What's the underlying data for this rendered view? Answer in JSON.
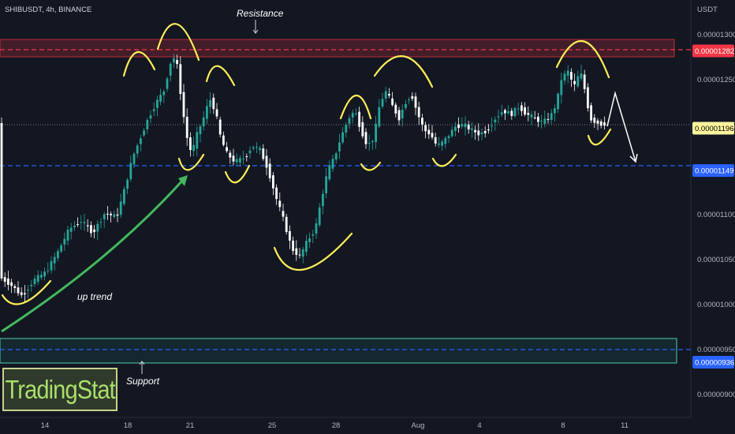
{
  "header": {
    "symbol": "SHIBUSDT, 4h, BINANCE"
  },
  "axis": {
    "currency": "USDT"
  },
  "chart_data": {
    "type": "candlestick",
    "title": "SHIBUSDT, 4h, BINANCE",
    "ylabel": "USDT",
    "ylim": [
      8.7e-06,
      1.35e-05
    ],
    "y_ticks": [
      "0.00001300",
      "0.00001250",
      "0.00001200",
      "0.00001100",
      "0.00001050",
      "0.00001000",
      "0.00000950",
      "0.00000900"
    ],
    "y_tick_values": [
      1.3e-05,
      1.25e-05,
      1.2e-05,
      1.1e-05,
      1.05e-05,
      1e-05,
      9.5e-06,
      9e-06
    ],
    "x_ticks": [
      "14",
      "18",
      "21",
      "25",
      "28",
      "Aug",
      "4",
      "8",
      "11"
    ],
    "price_labels": [
      {
        "text": "0.00001282",
        "value": 1.282e-05,
        "color": "#f23645",
        "text_color": "#ffffff"
      },
      {
        "text": "0.00001196",
        "value": 1.196e-05,
        "color": "#fff59d",
        "text_color": "#000000"
      },
      {
        "text": "0.00001149",
        "value": 1.149e-05,
        "color": "#2962ff",
        "text_color": "#ffffff"
      },
      {
        "text": "0.00000936",
        "value": 9.36e-06,
        "color": "#2962ff",
        "text_color": "#ffffff"
      }
    ],
    "zones": [
      {
        "name": "resistance",
        "from": 1.271e-05,
        "to": 1.29e-05,
        "color": "#f23645"
      },
      {
        "name": "support",
        "from": 9.22e-06,
        "to": 9.49e-06,
        "color": "#26a69a"
      }
    ],
    "annotations": [
      "Resistance",
      "Support",
      "up trend"
    ],
    "candle_colors": {
      "up": "#26a69a",
      "down": "#ffffff"
    },
    "grid": false
  },
  "branding": {
    "logo": "TradingStat"
  }
}
